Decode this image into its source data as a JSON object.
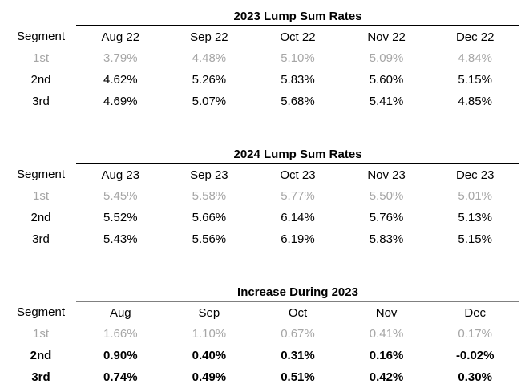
{
  "page": {
    "background": "#ffffff",
    "text_color": "#000000",
    "muted_row_color": "#a6a6a6",
    "table1_rule_color": "#000000",
    "table2_rule_color": "#000000",
    "table3_rule_color": "#808080"
  },
  "tables": [
    {
      "title": "2023 Lump Sum Rates",
      "segment_header": "Segment",
      "columns": [
        "Aug 22",
        "Sep 22",
        "Oct 22",
        "Nov 22",
        "Dec 22"
      ],
      "rule_style": "dark",
      "rows": [
        {
          "segment": "1st",
          "muted": true,
          "bold": false,
          "values": [
            "3.79%",
            "4.48%",
            "5.10%",
            "5.09%",
            "4.84%"
          ]
        },
        {
          "segment": "2nd",
          "muted": false,
          "bold": false,
          "values": [
            "4.62%",
            "5.26%",
            "5.83%",
            "5.60%",
            "5.15%"
          ]
        },
        {
          "segment": "3rd",
          "muted": false,
          "bold": false,
          "values": [
            "4.69%",
            "5.07%",
            "5.68%",
            "5.41%",
            "4.85%"
          ]
        }
      ]
    },
    {
      "title": "2024 Lump Sum Rates",
      "segment_header": "Segment",
      "columns": [
        "Aug 23",
        "Sep 23",
        "Oct 23",
        "Nov 23",
        "Dec 23"
      ],
      "rule_style": "dark",
      "rows": [
        {
          "segment": "1st",
          "muted": true,
          "bold": false,
          "values": [
            "5.45%",
            "5.58%",
            "5.77%",
            "5.50%",
            "5.01%"
          ]
        },
        {
          "segment": "2nd",
          "muted": false,
          "bold": false,
          "values": [
            "5.52%",
            "5.66%",
            "6.14%",
            "5.76%",
            "5.13%"
          ]
        },
        {
          "segment": "3rd",
          "muted": false,
          "bold": false,
          "values": [
            "5.43%",
            "5.56%",
            "6.19%",
            "5.83%",
            "5.15%"
          ]
        }
      ]
    },
    {
      "title": "Increase During 2023",
      "segment_header": "Segment",
      "columns": [
        "Aug",
        "Sep",
        "Oct",
        "Nov",
        "Dec"
      ],
      "rule_style": "gray",
      "rows": [
        {
          "segment": "1st",
          "muted": true,
          "bold": false,
          "values": [
            "1.66%",
            "1.10%",
            "0.67%",
            "0.41%",
            "0.17%"
          ]
        },
        {
          "segment": "2nd",
          "muted": false,
          "bold": true,
          "values": [
            "0.90%",
            "0.40%",
            "0.31%",
            "0.16%",
            "-0.02%"
          ]
        },
        {
          "segment": "3rd",
          "muted": false,
          "bold": true,
          "values": [
            "0.74%",
            "0.49%",
            "0.51%",
            "0.42%",
            "0.30%"
          ]
        }
      ]
    }
  ]
}
